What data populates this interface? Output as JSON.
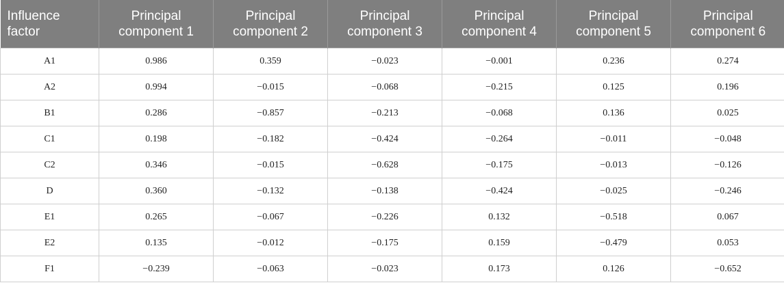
{
  "table": {
    "headers": [
      "Influence factor",
      "Principal component 1",
      "Principal component 2",
      "Principal component 3",
      "Principal component 4",
      "Principal component 5",
      "Principal component 6"
    ],
    "rows": [
      [
        "A1",
        "0.986",
        "0.359",
        "−0.023",
        "−0.001",
        "0.236",
        "0.274"
      ],
      [
        "A2",
        "0.994",
        "−0.015",
        "−0.068",
        "−0.215",
        "0.125",
        "0.196"
      ],
      [
        "B1",
        "0.286",
        "−0.857",
        "−0.213",
        "−0.068",
        "0.136",
        "0.025"
      ],
      [
        "C1",
        "0.198",
        "−0.182",
        "−0.424",
        "−0.264",
        "−0.011",
        "−0.048"
      ],
      [
        "C2",
        "0.346",
        "−0.015",
        "−0.628",
        "−0.175",
        "−0.013",
        "−0.126"
      ],
      [
        "D",
        "0.360",
        "−0.132",
        "−0.138",
        "−0.424",
        "−0.025",
        "−0.246"
      ],
      [
        "E1",
        "0.265",
        "−0.067",
        "−0.226",
        "0.132",
        "−0.518",
        "0.067"
      ],
      [
        "E2",
        "0.135",
        "−0.012",
        "−0.175",
        "0.159",
        "−0.479",
        "0.053"
      ],
      [
        "F1",
        "−0.239",
        "−0.063",
        "−0.023",
        "0.173",
        "0.126",
        "−0.652"
      ]
    ]
  }
}
